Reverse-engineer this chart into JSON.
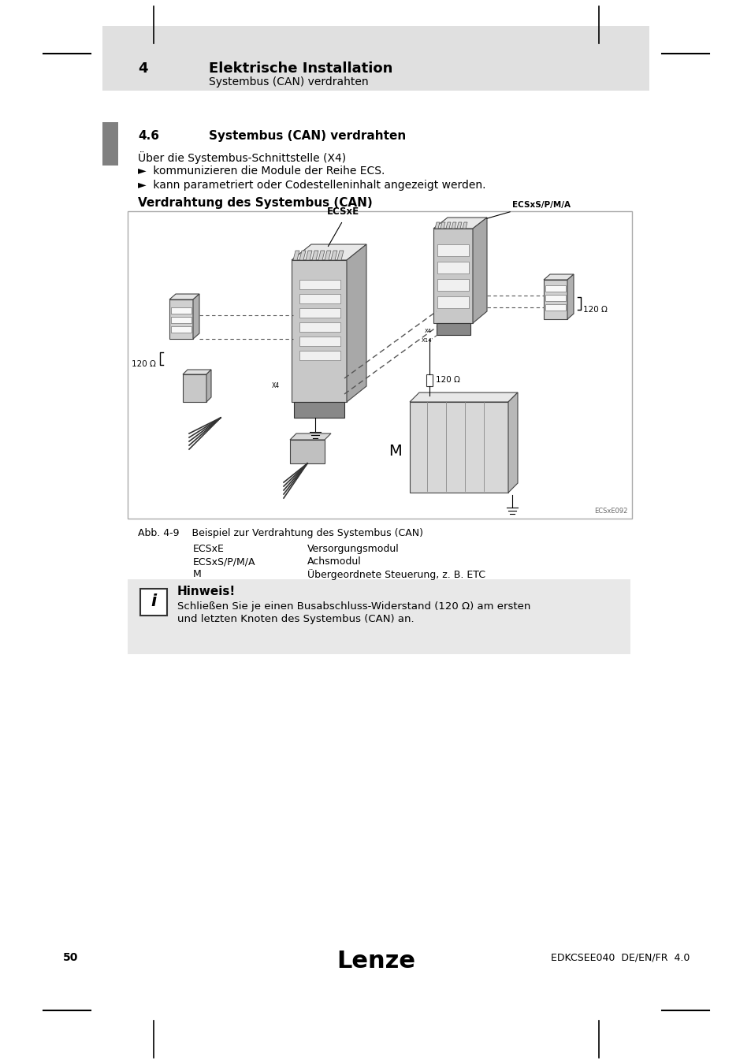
{
  "page_bg": "#ffffff",
  "header_bg": "#e0e0e0",
  "header_number": "4",
  "header_title": "Elektrische Installation",
  "header_subtitle": "Systembus (CAN) verdrahten",
  "section_number": "4.6",
  "section_title": "Systembus (CAN) verdrahten",
  "section_marker_color": "#808080",
  "intro_line1": "Über die Systembus-Schnittstelle (X4)",
  "bullet1": "►  kommunizieren die Module der Reihe ECS.",
  "bullet2": "►  kann parametriert oder Codestelleninhalt angezeigt werden.",
  "diagram_title": "Verdrahtung des Systembus (CAN)",
  "diagram_label": "ECSxE092",
  "fig_label": "Abb. 4-9",
  "fig_caption": "Beispiel zur Verdrahtung des Systembus (CAN)",
  "legend_rows": [
    [
      "ECSxE",
      "Versorgungsmodul"
    ],
    [
      "ECSxS/P/M/A",
      "Achsmodul"
    ],
    [
      "M",
      "Übergeordnete Steuerung, z. B. ETC"
    ]
  ],
  "note_title": "Hinweis!",
  "note_text1": "Schließen Sie je einen Busabschluss-Widerstand (120 Ω) am ersten",
  "note_text2": "und letzten Knoten des Systembus (CAN) an.",
  "footer_page": "50",
  "footer_brand": "Lenze",
  "footer_doc": "EDKCSEE040  DE/EN/FR  4.0",
  "corner_tick_color": "#000000",
  "margin_line_color": "#000000"
}
